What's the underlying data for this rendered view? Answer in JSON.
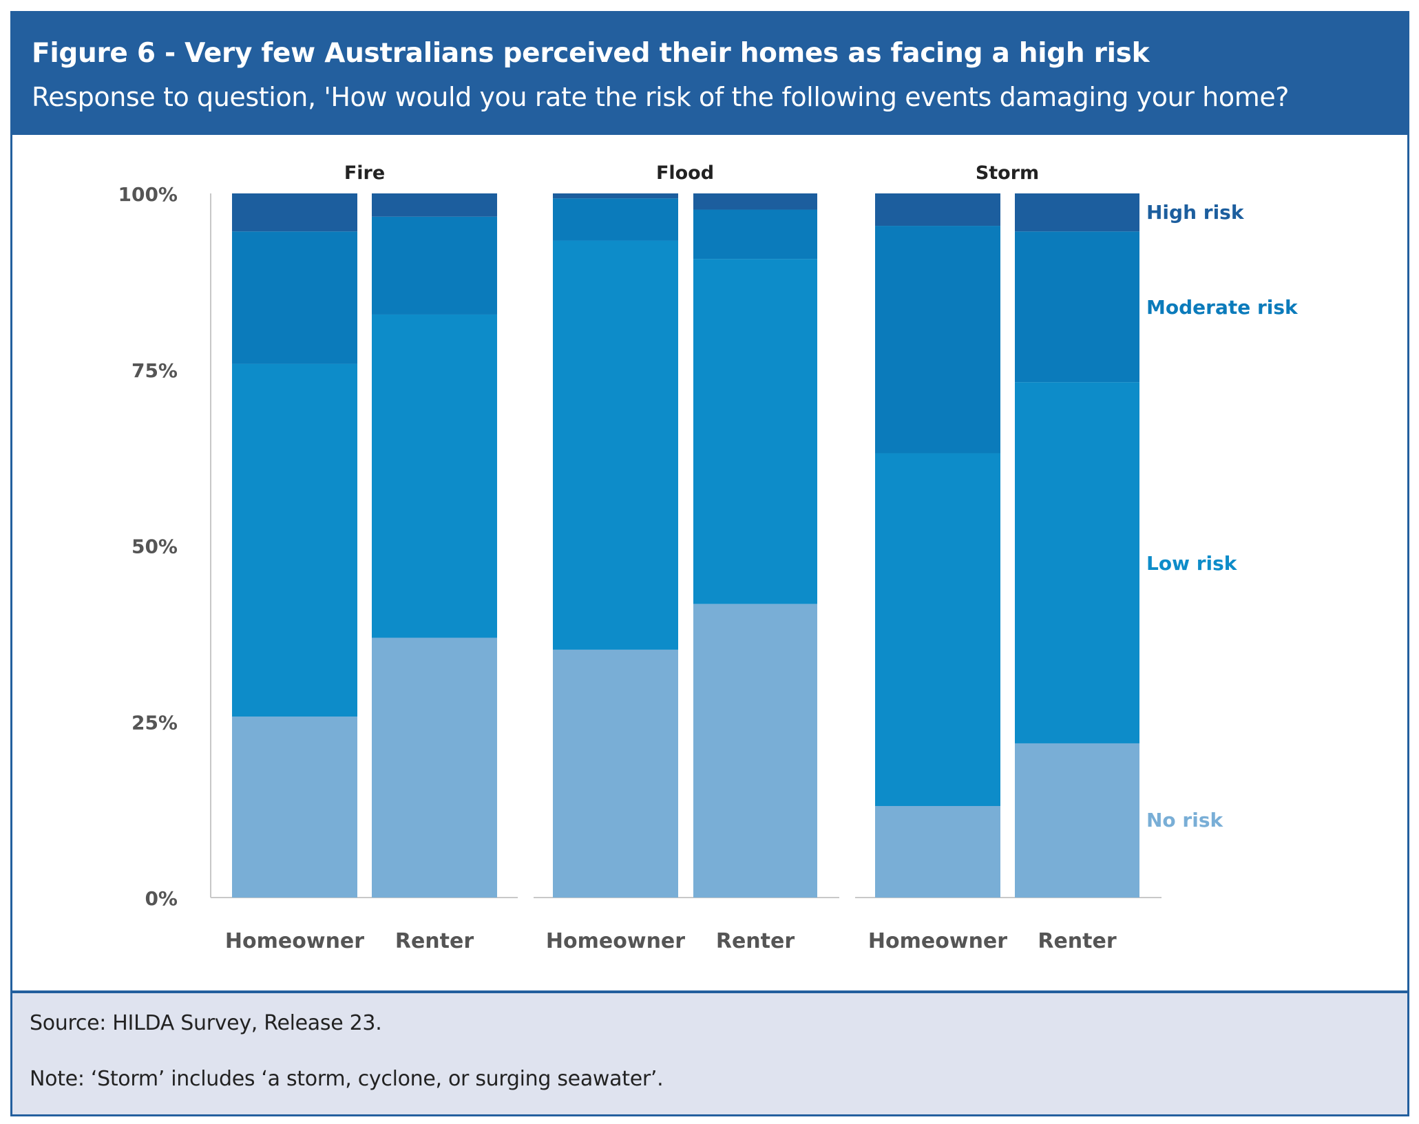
{
  "header": {
    "title": "Figure 6 - Very few Australians perceived their homes as facing a high risk",
    "subtitle": "Response to question, 'How would you rate the risk of the following events damaging your home?"
  },
  "footer": {
    "source": "Source: HILDA Survey, Release 23.",
    "note": "Note: ‘Storm’ includes ‘a storm, cyclone, or surging seawater’."
  },
  "colors": {
    "header_bg": "#235f9e",
    "footer_bg": "#dfe3ef",
    "high": "#1c5e9e",
    "moderate": "#0b7bbb",
    "low": "#0d8cc9",
    "none": "#79aed6"
  },
  "chart_data": {
    "type": "bar",
    "stacked": true,
    "title": "Figure 6 - Very few Australians perceived their homes as facing a high risk",
    "subtitle": "Response to question, 'How would you rate the risk of the following events damaging your home?",
    "xlabel": "",
    "ylabel": "",
    "ylim": [
      0,
      100
    ],
    "yticks": [
      "0%",
      "25%",
      "50%",
      "75%",
      "100%"
    ],
    "ytick_values": [
      0,
      25,
      50,
      75,
      100
    ],
    "grid": false,
    "legend_placement": "right (inline labels)",
    "panels": [
      "Fire",
      "Flood",
      "Storm"
    ],
    "categories": [
      "Homeowner",
      "Renter"
    ],
    "series_order_bottom_to_top": [
      "No risk",
      "Low risk",
      "Moderate risk",
      "High risk"
    ],
    "legend": [
      {
        "name": "High risk",
        "color": "#1c5e9e"
      },
      {
        "name": "Moderate risk",
        "color": "#0b7bbb"
      },
      {
        "name": "Low risk",
        "color": "#0d8cc9"
      },
      {
        "name": "No risk",
        "color": "#79aed6"
      }
    ],
    "data": [
      {
        "panel": "Fire",
        "category": "Homeowner",
        "No risk": 25.7,
        "Low risk": 50.1,
        "Moderate risk": 18.8,
        "High risk": 5.4
      },
      {
        "panel": "Fire",
        "category": "Renter",
        "No risk": 36.9,
        "Low risk": 45.9,
        "Moderate risk": 13.9,
        "High risk": 3.3
      },
      {
        "panel": "Flood",
        "category": "Homeowner",
        "No risk": 35.2,
        "Low risk": 58.1,
        "Moderate risk": 6.0,
        "High risk": 0.7
      },
      {
        "panel": "Flood",
        "category": "Renter",
        "No risk": 41.7,
        "Low risk": 49.0,
        "Moderate risk": 7.0,
        "High risk": 2.3
      },
      {
        "panel": "Storm",
        "category": "Homeowner",
        "No risk": 13.0,
        "Low risk": 50.1,
        "Moderate risk": 32.3,
        "High risk": 4.6
      },
      {
        "panel": "Storm",
        "category": "Renter",
        "No risk": 21.9,
        "Low risk": 51.3,
        "Moderate risk": 21.4,
        "High risk": 5.4
      }
    ]
  }
}
